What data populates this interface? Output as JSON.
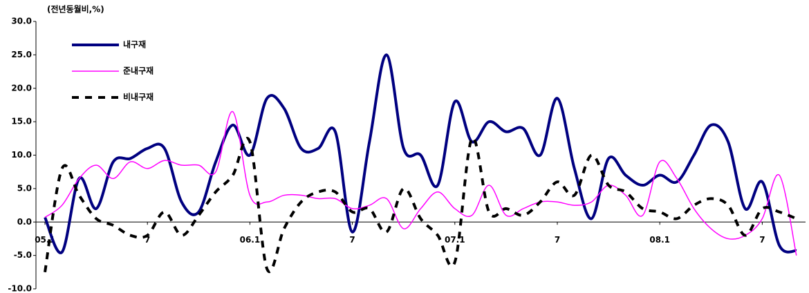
{
  "chart_data": {
    "type": "line",
    "y_label": "(전년동월비,%)",
    "categories": [
      "05.1",
      null,
      null,
      null,
      null,
      null,
      "7",
      null,
      null,
      null,
      null,
      null,
      "06.1",
      null,
      null,
      null,
      null,
      null,
      "7",
      null,
      null,
      null,
      null,
      null,
      "07.1",
      null,
      null,
      null,
      null,
      null,
      "7",
      null,
      null,
      null,
      null,
      null,
      "08.1",
      null,
      null,
      null,
      null,
      null,
      "7",
      null,
      null
    ],
    "series": [
      {
        "name": "내구재",
        "color": "#000080",
        "style": "solid",
        "width": 4,
        "values": [
          0.7,
          -4.5,
          6.5,
          2,
          9,
          9.5,
          11,
          11,
          3,
          1.5,
          9,
          14.5,
          10,
          18.5,
          17,
          11,
          11,
          13.5,
          -1.5,
          12,
          25,
          11,
          10,
          5.5,
          18,
          12,
          15,
          13.5,
          14,
          10,
          18.5,
          8,
          0.5,
          9.5,
          7,
          5.5,
          7,
          6,
          10,
          14.5,
          12,
          2,
          6,
          -3.5,
          -4.3
        ]
      },
      {
        "name": "준내구재",
        "color": "#ff00ff",
        "style": "solid",
        "width": 1.5,
        "values": [
          0.7,
          2.5,
          6.5,
          8.5,
          6.5,
          9,
          8,
          9.2,
          8.5,
          8.5,
          7.5,
          16.5,
          4,
          3,
          4,
          4,
          3.5,
          3.5,
          2,
          2.5,
          3.5,
          -1,
          2,
          4.5,
          2,
          1,
          5.5,
          1,
          2,
          3,
          3,
          2.5,
          3,
          5.5,
          4,
          1,
          9,
          6.5,
          2,
          -1,
          -2.5,
          -2,
          0.5,
          7,
          -5
        ]
      },
      {
        "name": "비내구재",
        "color": "#000000",
        "style": "dashed",
        "width": 4,
        "values": [
          -7.5,
          8,
          4,
          0.5,
          -0.5,
          -2,
          -2,
          1.5,
          -2,
          1,
          4.5,
          7,
          12,
          -7,
          -1,
          3,
          4.5,
          4.5,
          1.5,
          2,
          -1.5,
          5,
          0.5,
          -2,
          -6,
          12.5,
          1.5,
          2,
          1,
          3,
          6,
          4,
          10,
          5.5,
          4.5,
          2,
          1.5,
          0.5,
          2.5,
          3.5,
          2.5,
          -2,
          2,
          1.5,
          0.5
        ]
      }
    ],
    "ylim": [
      -10,
      30
    ],
    "yticks": [
      {
        "value": -10,
        "label": "-10.0"
      },
      {
        "value": -5,
        "label": "-5.0"
      },
      {
        "value": 0,
        "label": "0.0"
      },
      {
        "value": 5,
        "label": "5.0"
      },
      {
        "value": 10,
        "label": "10.0"
      },
      {
        "value": 15,
        "label": "15.0"
      },
      {
        "value": 20,
        "label": "20.0"
      },
      {
        "value": 25,
        "label": "25.0"
      },
      {
        "value": 30,
        "label": "30.0"
      }
    ],
    "legend": "upper left"
  }
}
